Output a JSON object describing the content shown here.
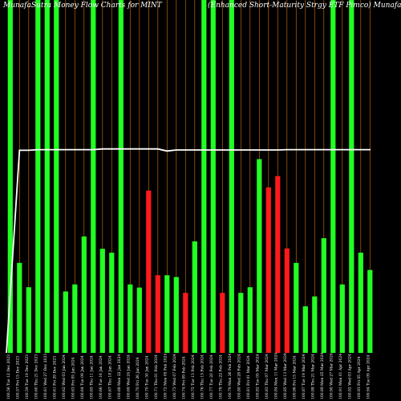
{
  "header": {
    "title_left": "MunafaSutra Money Flow Charts for MINT",
    "title_right": "(Enhanced Short-Maturity Strgy ETF Pimco) MunafaSutra.com"
  },
  "colors": {
    "background": "#000000",
    "up": "#22ff22",
    "down": "#ff1a1a",
    "grid": "#b8640a",
    "price_line": "#ffffff"
  },
  "chart_data": {
    "type": "bar",
    "title": "MunafaSutra Money Flow Charts for MINT (Enhanced Short-Maturity Strgy ETF Pimco) MunafaSutra.com",
    "ylim": [
      0,
      100
    ],
    "categories": [
      "100.56 Tue 12 Dec 2023",
      "100.57 Fri 15 Dec 2023",
      "100.59 Tue 19 Dec 2023",
      "100.60 Thu 21 Dec 2023",
      "100.61 Wed 27 Dec 2023",
      "100.61 Fri 29 Dec 2023",
      "100.62 Wed 03 Jan 2024",
      "100.63 Fri 05 Jan 2024",
      "100.64 Tue 09 Jan 2024",
      "100.65 Thu 11 Jan 2024",
      "100.66 Tue 16 Jan 2024",
      "100.67 Thu 18 Jan 2024",
      "100.68 Mon 22 Jan 2024",
      "100.69 Wed 24 Jan 2024",
      "100.70 Fri 26 Jan 2024",
      "100.70 Tue 30 Jan 2024",
      "100.71 Thu 01 Feb 2024",
      "100.72 Mon 05 Feb 2024",
      "100.73 Wed 07 Feb 2024",
      "100.74 Fri 09 Feb 2024",
      "100.75 Tue 13 Feb 2024",
      "100.76 Thu 15 Feb 2024",
      "100.77 Tue 20 Feb 2024",
      "100.78 Thu 22 Feb 2024",
      "100.79 Mon 26 Feb 2024",
      "100.80 Wed 28 Feb 2024",
      "100.81 Fri 01 Mar 2024",
      "100.82 Tue 05 Mar 2024",
      "100.83 Thu 07 Mar 2024",
      "100.84 Mon 11 Mar 2024",
      "100.85 Wed 13 Mar 2024",
      "100.86 Fri 15 Mar 2024",
      "100.87 Tue 19 Mar 2024",
      "100.88 Thu 21 Mar 2024",
      "100.89 Mon 25 Mar 2024",
      "100.90 Wed 27 Mar 2024",
      "100.91 Mon 01 Apr 2024",
      "100.92 Wed 03 Apr 2024",
      "100.93 Fri 05 Apr 2024",
      "100.94 Tue 09 Apr 2024"
    ],
    "values": [
      100,
      25.5,
      18.6,
      100,
      100,
      100,
      17.4,
      19.4,
      33.0,
      100,
      29.5,
      28.4,
      100,
      19.4,
      18.5,
      46.0,
      22.0,
      22.0,
      21.5,
      17.0,
      31.6,
      100,
      100,
      17.0,
      100,
      17.0,
      18.6,
      54.9,
      46.9,
      50.1,
      29.6,
      25.5,
      13.2,
      16.0,
      32.5,
      100,
      19.4,
      100,
      28.4,
      23.5
    ],
    "directions": [
      "up",
      "up",
      "up",
      "up",
      "up",
      "up",
      "up",
      "up",
      "up",
      "up",
      "up",
      "up",
      "up",
      "up",
      "up",
      "down",
      "down",
      "up",
      "up",
      "down",
      "up",
      "up",
      "up",
      "down",
      "up",
      "up",
      "up",
      "up",
      "down",
      "down",
      "down",
      "up",
      "up",
      "up",
      "up",
      "up",
      "up",
      "up",
      "up",
      "up"
    ],
    "price_line": [
      0,
      57.4,
      57.4,
      57.6,
      57.6,
      57.6,
      57.6,
      57.6,
      57.6,
      57.6,
      57.8,
      57.8,
      57.8,
      57.8,
      57.8,
      57.8,
      57.8,
      57.2,
      57.5,
      57.5,
      57.5,
      57.5,
      57.5,
      57.5,
      57.5,
      57.5,
      57.5,
      57.5,
      57.5,
      57.5,
      57.6,
      57.6,
      57.6,
      57.6,
      57.6,
      57.6,
      57.6,
      57.6,
      57.6,
      57.6
    ]
  }
}
